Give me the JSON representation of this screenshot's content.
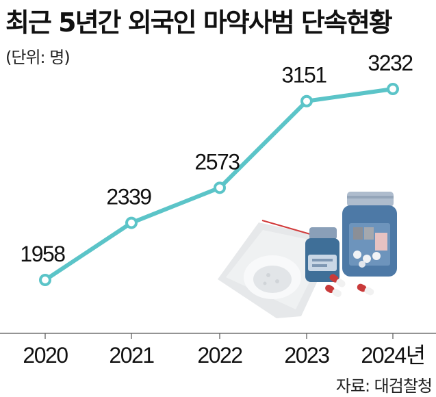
{
  "header": {
    "title": "최근 5년간 외국인 마약사범 단속현황",
    "unit": "(단위: 명)"
  },
  "footer": {
    "source": "자료: 대검찰청"
  },
  "colors": {
    "line": "#5bc4c8",
    "axis": "#555555",
    "text": "#111111"
  },
  "chart_data": {
    "type": "line",
    "title": "최근 5년간 외국인 마약사범 단속현황",
    "unit_label": "(단위: 명)",
    "categories": [
      "2020",
      "2021",
      "2022",
      "2023",
      "2024년"
    ],
    "series": [
      {
        "values": [
          1958,
          2339,
          2573,
          3151,
          3232
        ]
      }
    ],
    "data_labels": [
      "1958",
      "2339",
      "2573",
      "3151",
      "3232"
    ],
    "grid": false,
    "legend": "none",
    "y_axis": "hidden"
  }
}
